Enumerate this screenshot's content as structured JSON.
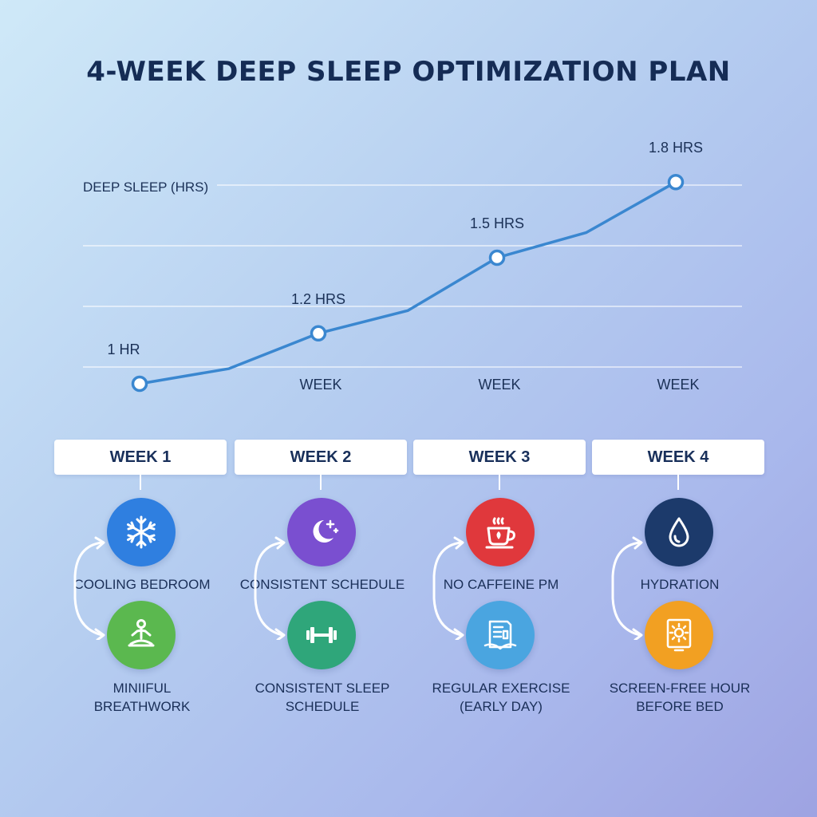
{
  "title": "4-WEEK DEEP SLEEP OPTIMIZATION PLAN",
  "chart_data": {
    "type": "line",
    "ylabel": "DEEP SLEEP (HRS)",
    "x": [
      1,
      1.5,
      2,
      2.5,
      3,
      3.5,
      4
    ],
    "series": [
      {
        "values": [
          1.0,
          1.06,
          1.2,
          1.29,
          1.5,
          1.6,
          1.8
        ]
      }
    ],
    "markers": [
      {
        "x": 1,
        "y": 1.0,
        "label": "1 HR"
      },
      {
        "x": 2,
        "y": 1.2,
        "label": "1.2 HRS"
      },
      {
        "x": 3,
        "y": 1.5,
        "label": "1.5 HRS"
      },
      {
        "x": 4,
        "y": 1.8,
        "label": "1.8 HRS"
      }
    ],
    "xtick_labels": [
      {
        "x": 2,
        "label": "WEEK"
      },
      {
        "x": 3,
        "label": "WEEK"
      },
      {
        "x": 4,
        "label": "WEEK"
      }
    ],
    "grid": true,
    "line_color": "#3a87d0"
  },
  "weeks": [
    {
      "label": "WEEK 1",
      "top": {
        "icon": "snowflake-icon",
        "color": "#2f7fe0",
        "label": "COOLING BEDROOM"
      },
      "bottom": {
        "icon": "meditation-icon",
        "color": "#5bb84f",
        "label_lines": [
          "MINIIFUL",
          "BREATHWORK"
        ]
      }
    },
    {
      "label": "WEEK 2",
      "top": {
        "icon": "moon-stars-icon",
        "color": "#7a4fd0",
        "label": "CONSISTENT SCHEDULE"
      },
      "bottom": {
        "icon": "dumbbell-icon",
        "color": "#2fa67a",
        "label_lines": [
          "CONSISTENT SLEEP",
          "SCHEDULE"
        ]
      }
    },
    {
      "label": "WEEK 3",
      "top": {
        "icon": "tea-cup-icon",
        "color": "#e0383c",
        "label": "NO CAFFEINE PM"
      },
      "bottom": {
        "icon": "book-icon",
        "color": "#4aa5e0",
        "label_lines": [
          "REGULAR EXERCISE",
          "(EARLY DAY)"
        ]
      }
    },
    {
      "label": "WEEK 4",
      "top": {
        "icon": "water-drop-icon",
        "color": "#1c3a6b",
        "label": "HYDRATION"
      },
      "bottom": {
        "icon": "screen-sun-icon",
        "color": "#f2a022",
        "label_lines": [
          "SCREEN-FREE HOUR",
          "BEFORE BED"
        ]
      }
    }
  ]
}
